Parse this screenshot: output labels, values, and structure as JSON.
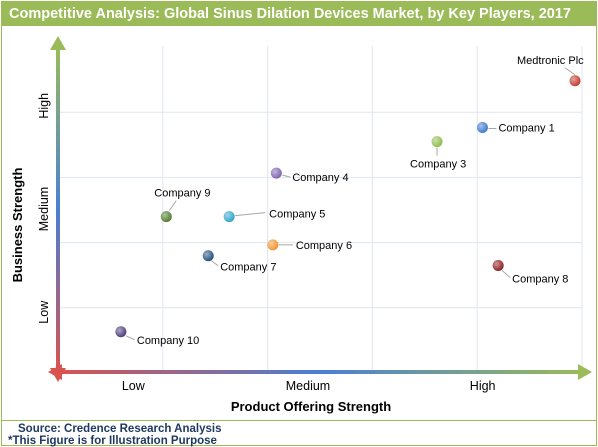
{
  "title": "Competitive Analysis: Global Sinus Dilation Devices Market, by Key Players, 2017",
  "source": "Source: Credence Research Analysis",
  "note": "*This Figure is for Illustration Purpose",
  "chart_data": {
    "type": "scatter",
    "title": "Competitive Analysis: Global Sinus Dilation Devices Market, by Key Players, 2017",
    "xlabel": "Product Offering Strength",
    "ylabel": "Business Strength",
    "x_categories": [
      "Low",
      "Medium",
      "High"
    ],
    "y_categories": [
      "Low",
      "Medium",
      "High"
    ],
    "xlim": [
      0,
      3
    ],
    "ylim": [
      0,
      3
    ],
    "grid": true,
    "points": [
      {
        "name": "Medtronic Plc",
        "x": 2.96,
        "y": 2.68,
        "color": "#c0392b"
      },
      {
        "name": "Company 1",
        "x": 2.43,
        "y": 2.25,
        "color": "#3a78c9"
      },
      {
        "name": "Company 3",
        "x": 2.17,
        "y": 2.12,
        "color": "#8dbb4a"
      },
      {
        "name": "Company 4",
        "x": 1.25,
        "y": 1.83,
        "color": "#7b5fb0"
      },
      {
        "name": "Company 9",
        "x": 0.62,
        "y": 1.43,
        "color": "#4f7a2a"
      },
      {
        "name": "Company 5",
        "x": 0.98,
        "y": 1.43,
        "color": "#2ea3c9"
      },
      {
        "name": "Company 6",
        "x": 1.23,
        "y": 1.17,
        "color": "#f0922d"
      },
      {
        "name": "Company 7",
        "x": 0.86,
        "y": 1.07,
        "color": "#1f4e79"
      },
      {
        "name": "Company 8",
        "x": 2.52,
        "y": 0.98,
        "color": "#8b1a1a"
      },
      {
        "name": "Company 10",
        "x": 0.36,
        "y": 0.37,
        "color": "#4b3a7a"
      }
    ]
  }
}
